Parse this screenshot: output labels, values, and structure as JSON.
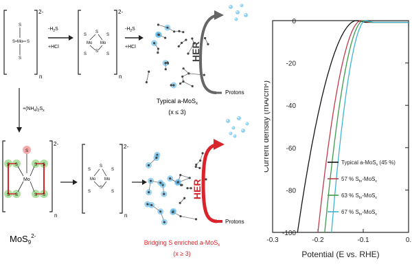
{
  "scheme": {
    "charge": "2-",
    "repeat": "n",
    "step1_top": "-H",
    "step1_sub": "2",
    "step1_top2": "S",
    "step1_bottom": "+HCl",
    "step2_top": "-H",
    "step2_sub": "2",
    "step2_top2": "S",
    "step2_bottom": "+HCl",
    "step_down": "+(NH",
    "step_down_sub": "4",
    "step_down_mid": ")",
    "step_down_sub2": "2",
    "step_down_end": "S",
    "step_down_sub3": "x",
    "her_label": "HER",
    "protons_label": "Protons",
    "typical_label": "Typical a-MoS",
    "typical_sub": "x",
    "typical_cond": "(x ≤ 3)",
    "bridging_label": "Bridging S enriched a-MoS",
    "bridging_sub": "x",
    "bridging_cond": "(x ≥ 3)",
    "mos9": "MoS",
    "mos9_sub": "9",
    "mos9_sup": "2-",
    "atom_s": "S",
    "atom_mo": "Mo",
    "colors": {
      "red": "#d8242a",
      "cyan": "#4fb1e3",
      "green_glow": "#8fd17a",
      "gray": "#555555"
    }
  },
  "chart_data": {
    "type": "line",
    "xlabel": "Potential (E vs. RHE)",
    "ylabel": "Current density (mA/cm²)",
    "xlim": [
      -0.3,
      0.0
    ],
    "ylim": [
      -100,
      0
    ],
    "xticks": [
      -0.3,
      -0.2,
      -0.1,
      0.0
    ],
    "xtick_labels": [
      "-0.3",
      "-0.2",
      "-0.1",
      "0."
    ],
    "yticks": [
      0,
      -20,
      -40,
      -60,
      -80,
      -100
    ],
    "ytick_labels": [
      "0",
      "-20",
      "-40",
      "-60",
      "-80",
      "-100"
    ],
    "legend_position": "lower-right",
    "series": [
      {
        "name": "Typical a-MoS_x (45 %)",
        "label_main": "Typical a-MoS",
        "label_sub": "x",
        "label_tail": " (45 %)",
        "color": "#111111",
        "onset": -0.115,
        "end": -0.245
      },
      {
        "name": "57 % S_br-MoS_x",
        "label_main": "57 % S",
        "label_sub": "br",
        "label_tail": "-MoS",
        "label_sub2": "x",
        "color": "#c0394b",
        "onset": -0.105,
        "end": -0.2
      },
      {
        "name": "63 % S_br-MoS_x",
        "label_main": "63 % S",
        "label_sub": "br",
        "label_tail": "-MoS",
        "label_sub2": "x",
        "color": "#3a9a4a",
        "onset": -0.1,
        "end": -0.185
      },
      {
        "name": "67 % S_br-MoS_x",
        "label_main": "67 % S",
        "label_sub": "br",
        "label_tail": "-MoS",
        "label_sub2": "x",
        "color": "#3bb3d6",
        "onset": -0.095,
        "end": -0.17
      }
    ]
  }
}
